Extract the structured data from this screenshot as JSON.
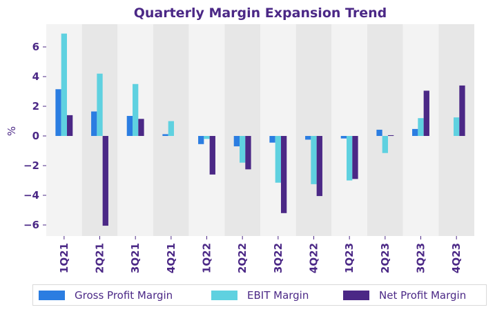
{
  "chart_data": {
    "type": "bar",
    "title": "Quarterly Margin Expansion Trend",
    "xlabel": "",
    "ylabel": "%",
    "ylim": [
      -6.8,
      7.4
    ],
    "yticks": [
      6,
      4,
      2,
      0,
      -2,
      -4,
      -6
    ],
    "ytick_labels": [
      "6",
      "4",
      "2",
      "0",
      "−2",
      "−4",
      "−6"
    ],
    "grid": false,
    "alternating_band_background": true,
    "legend_position": "bottom",
    "categories": [
      "1Q21",
      "2Q21",
      "3Q21",
      "4Q21",
      "1Q22",
      "2Q22",
      "3Q22",
      "4Q22",
      "1Q23",
      "2Q23",
      "3Q23",
      "4Q23"
    ],
    "series": [
      {
        "name": "Gross Profit Margin",
        "color": "#2b7de1",
        "values": [
          3.15,
          1.65,
          1.35,
          0.12,
          -0.55,
          -0.7,
          -0.45,
          -0.25,
          -0.17,
          0.42,
          0.47,
          0.0
        ]
      },
      {
        "name": "EBIT Margin",
        "color": "#5fd1e0",
        "values": [
          6.9,
          4.2,
          3.5,
          1.0,
          -0.2,
          -1.8,
          -3.15,
          -3.25,
          -3.0,
          -1.15,
          1.2,
          1.25
        ]
      },
      {
        "name": "Net Profit Margin",
        "color": "#4b2886",
        "values": [
          1.4,
          -6.05,
          1.15,
          0.0,
          -2.6,
          -2.25,
          -5.2,
          -4.05,
          -2.9,
          0.05,
          3.05,
          3.4
        ]
      }
    ]
  },
  "colors": {
    "text": "#4b2886",
    "band_light": "#f3f3f3",
    "band_dark": "#e7e7e7"
  }
}
